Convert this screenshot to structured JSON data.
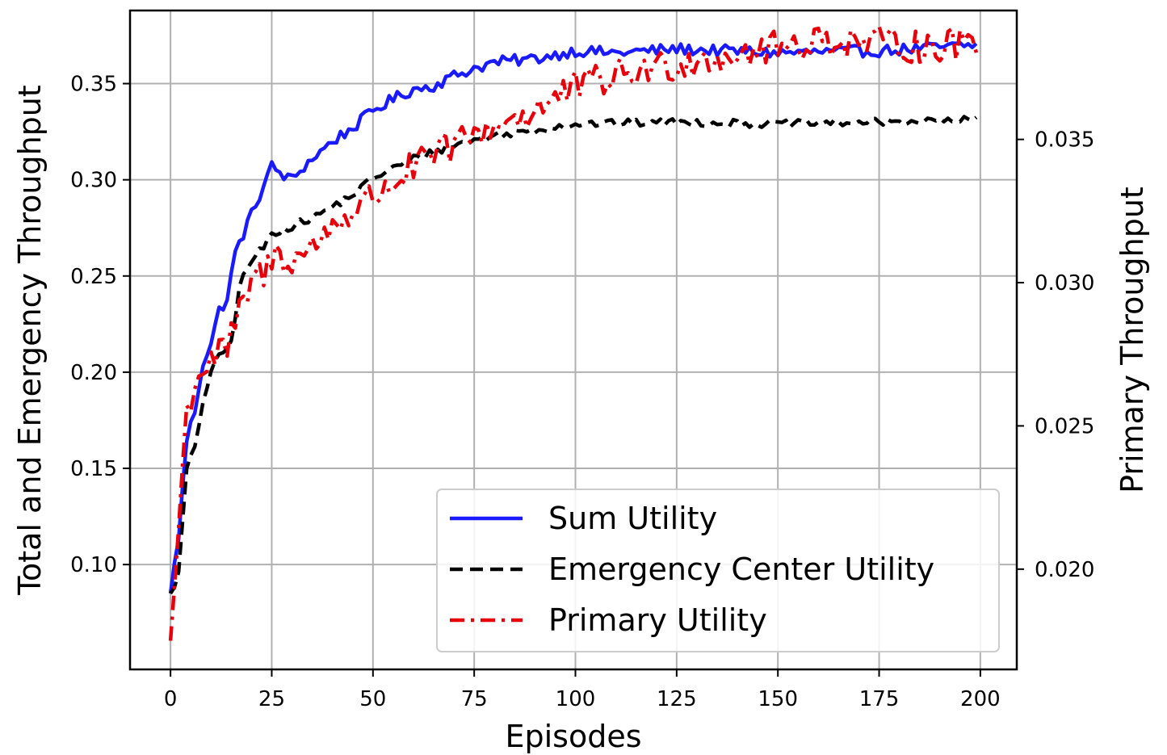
{
  "chart_data": {
    "type": "line",
    "title": "",
    "xlabel": "Episodes",
    "ylabel": "Total and Emergency Throughput",
    "y2label": "Primary Throughput",
    "y2label_color": "#e8000b",
    "xlim": [
      -10,
      209
    ],
    "ylim": [
      0.0455,
      0.388
    ],
    "y2lim": [
      0.0165,
      0.0395
    ],
    "xticks": [
      0,
      25,
      50,
      75,
      100,
      125,
      150,
      175,
      200
    ],
    "xtick_labels": [
      "0",
      "25",
      "50",
      "75",
      "100",
      "125",
      "150",
      "175",
      "200"
    ],
    "yticks": [
      0.1,
      0.15,
      0.2,
      0.25,
      0.3,
      0.35
    ],
    "ytick_labels": [
      "0.10",
      "0.15",
      "0.20",
      "0.25",
      "0.30",
      "0.35"
    ],
    "y2ticks": [
      0.02,
      0.025,
      0.03,
      0.035
    ],
    "y2tick_labels": [
      "0.020",
      "0.025",
      "0.030",
      "0.035"
    ],
    "grid": true,
    "legend_position": "bottom-right",
    "x_step": 1,
    "series": [
      {
        "name": "Sum Utility",
        "axis": "left",
        "color": "#1a1aff",
        "style": "solid",
        "anchors": [
          [
            0,
            0.085
          ],
          [
            2,
            0.115
          ],
          [
            4,
            0.165
          ],
          [
            6,
            0.18
          ],
          [
            8,
            0.205
          ],
          [
            10,
            0.215
          ],
          [
            12,
            0.232
          ],
          [
            14,
            0.238
          ],
          [
            16,
            0.262
          ],
          [
            18,
            0.272
          ],
          [
            20,
            0.282
          ],
          [
            22,
            0.292
          ],
          [
            25,
            0.307
          ],
          [
            28,
            0.302
          ],
          [
            30,
            0.3
          ],
          [
            33,
            0.307
          ],
          [
            35,
            0.311
          ],
          [
            40,
            0.32
          ],
          [
            45,
            0.327
          ],
          [
            50,
            0.336
          ],
          [
            55,
            0.342
          ],
          [
            60,
            0.347
          ],
          [
            65,
            0.349
          ],
          [
            70,
            0.354
          ],
          [
            75,
            0.358
          ],
          [
            80,
            0.361
          ],
          [
            90,
            0.363
          ],
          [
            100,
            0.367
          ],
          [
            110,
            0.366
          ],
          [
            125,
            0.368
          ],
          [
            150,
            0.366
          ],
          [
            175,
            0.367
          ],
          [
            199,
            0.37
          ]
        ],
        "noise": 0.003
      },
      {
        "name": "Emergency Center Utility",
        "axis": "left",
        "color": "#000000",
        "style": "dashed",
        "anchors": [
          [
            0,
            0.085
          ],
          [
            2,
            0.095
          ],
          [
            4,
            0.15
          ],
          [
            6,
            0.16
          ],
          [
            8,
            0.185
          ],
          [
            10,
            0.2
          ],
          [
            12,
            0.208
          ],
          [
            15,
            0.215
          ],
          [
            17,
            0.245
          ],
          [
            20,
            0.258
          ],
          [
            23,
            0.265
          ],
          [
            25,
            0.272
          ],
          [
            30,
            0.276
          ],
          [
            35,
            0.28
          ],
          [
            40,
            0.286
          ],
          [
            45,
            0.292
          ],
          [
            50,
            0.301
          ],
          [
            55,
            0.306
          ],
          [
            60,
            0.311
          ],
          [
            70,
            0.318
          ],
          [
            80,
            0.323
          ],
          [
            90,
            0.326
          ],
          [
            100,
            0.329
          ],
          [
            125,
            0.33
          ],
          [
            150,
            0.329
          ],
          [
            175,
            0.33
          ],
          [
            199,
            0.331
          ]
        ],
        "noise": 0.002
      },
      {
        "name": "Primary Utility",
        "axis": "right",
        "color": "#e8000b",
        "style": "dashdot",
        "anchors": [
          [
            0,
            0.0175
          ],
          [
            2,
            0.0215
          ],
          [
            4,
            0.0255
          ],
          [
            6,
            0.0265
          ],
          [
            8,
            0.027
          ],
          [
            10,
            0.0273
          ],
          [
            14,
            0.0277
          ],
          [
            16,
            0.0285
          ],
          [
            18,
            0.0292
          ],
          [
            20,
            0.03
          ],
          [
            24,
            0.0305
          ],
          [
            26,
            0.031
          ],
          [
            30,
            0.0308
          ],
          [
            35,
            0.0312
          ],
          [
            40,
            0.032
          ],
          [
            45,
            0.0325
          ],
          [
            50,
            0.033
          ],
          [
            60,
            0.034
          ],
          [
            70,
            0.0348
          ],
          [
            80,
            0.0355
          ],
          [
            90,
            0.036
          ],
          [
            100,
            0.0368
          ],
          [
            110,
            0.0372
          ],
          [
            120,
            0.0375
          ],
          [
            130,
            0.0378
          ],
          [
            140,
            0.038
          ],
          [
            150,
            0.0382
          ],
          [
            160,
            0.0385
          ],
          [
            170,
            0.0384
          ],
          [
            180,
            0.0383
          ],
          [
            190,
            0.0382
          ],
          [
            199,
            0.0385
          ]
        ],
        "noise": 0.0006
      }
    ]
  }
}
